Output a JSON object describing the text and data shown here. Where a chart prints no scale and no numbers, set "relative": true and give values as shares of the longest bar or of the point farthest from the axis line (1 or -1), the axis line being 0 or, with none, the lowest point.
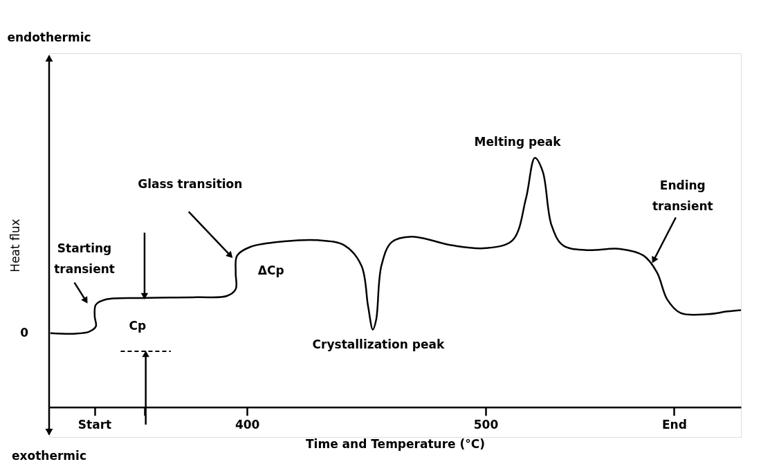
{
  "chart_data": {
    "type": "line",
    "relative": true,
    "xlabel": "Time and Temperature (°C)",
    "ylabel": "Heat flux",
    "xlim": [
      317,
      607
    ],
    "xticks": [
      {
        "value": 336,
        "label": "Start"
      },
      {
        "value": 357,
        "label": null
      },
      400,
      500,
      {
        "value": 579,
        "label": "End"
      }
    ],
    "grid": false,
    "legend": false,
    "marker": "none",
    "line_style": "solid",
    "series": [
      {
        "color": "#000000",
        "x": [
          317.5,
          328.2,
          333.8,
          336.6,
          336.1,
          336.6,
          340.8,
          356.3,
          378.9,
          391.5,
          395.2,
          395.2,
          395.8,
          401.4,
          415.5,
          429.6,
          440.8,
          447.9,
          450.7,
          452.7,
          454.1,
          456.3,
          460.6,
          469.0,
          485.9,
          500,
          511.3,
          516.9,
          520.6,
          523.9,
          527.6,
          532.4,
          542.3,
          556.3,
          566.2,
          571.8,
          576.1,
          581.7,
          593.0,
          601.4,
          607
        ],
        "values": [
          0.297,
          0.295,
          0.303,
          0.324,
          0.365,
          0.411,
          0.432,
          0.438,
          0.441,
          0.446,
          0.473,
          0.541,
          0.608,
          0.643,
          0.665,
          0.67,
          0.649,
          0.568,
          0.405,
          0.311,
          0.351,
          0.568,
          0.662,
          0.684,
          0.649,
          0.638,
          0.67,
          0.838,
          1.0,
          0.946,
          0.73,
          0.649,
          0.63,
          0.635,
          0.608,
          0.541,
          0.432,
          0.378,
          0.373,
          0.384,
          0.389
        ]
      },
      {
        "type": "line",
        "color": "#000000",
        "line_style": "dashed",
        "x": [
          347,
          368
        ],
        "values": [
          0.224,
          0.224
        ]
      }
    ],
    "annotations": [
      "Starting transient",
      "Glass transition",
      {
        "text": "Melting peak",
        "x": 520.6,
        "y": 1.0
      },
      {
        "text": "Ending transient",
        "x": 570.4,
        "y": 0.589
      },
      {
        "text": "Crystallization peak",
        "x": 452.7,
        "y": 0.311
      },
      "Cp",
      "ΔCp",
      "0",
      "endothermic",
      "exothermic"
    ]
  }
}
